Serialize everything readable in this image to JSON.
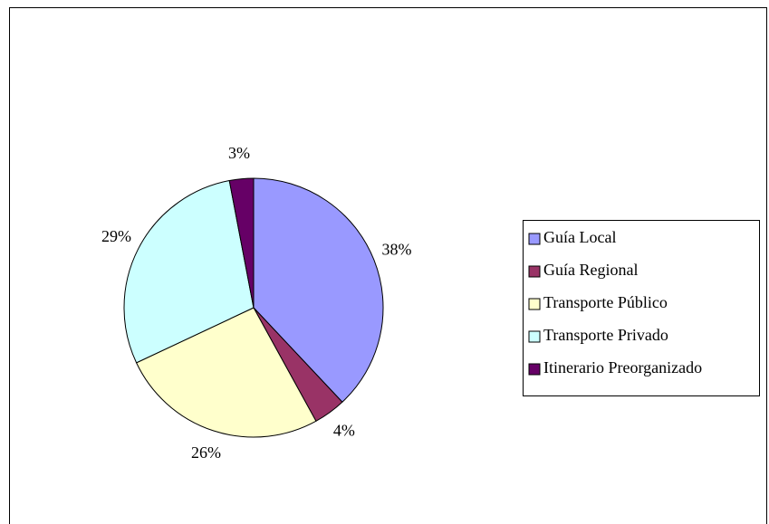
{
  "chart_data": {
    "type": "pie",
    "categories": [
      "Guía Local",
      "Guía Regional",
      "Transporte Público",
      "Transporte Privado",
      "Itinerario Preorganizado"
    ],
    "values": [
      38,
      4,
      26,
      29,
      3
    ],
    "value_labels": [
      "38%",
      "4%",
      "26%",
      "29%",
      "3%"
    ],
    "colors": [
      "#9999ff",
      "#993366",
      "#ffffcc",
      "#ccffff",
      "#660066"
    ],
    "legend": "right"
  }
}
